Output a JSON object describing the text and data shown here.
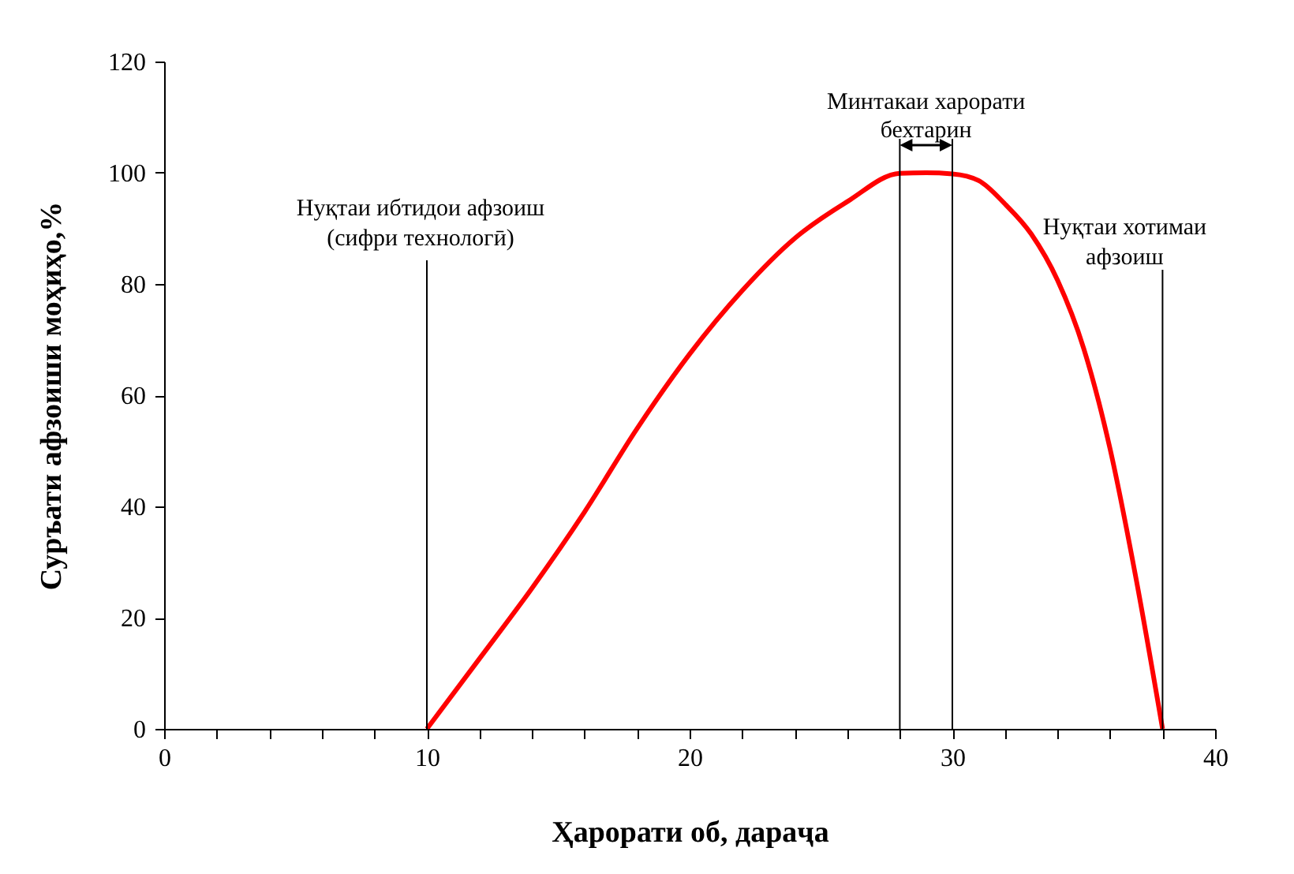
{
  "chart_data": {
    "type": "line",
    "xlabel": "Ҳарорати об, дараҷа",
    "ylabel": "Суръати афзоиши моҳиҳо,%",
    "x": [
      10,
      12,
      14,
      16,
      18,
      20,
      22,
      24,
      26,
      28,
      29,
      30,
      31,
      32,
      33,
      34,
      35,
      36,
      37,
      38
    ],
    "series": [
      {
        "color": "#ff0000",
        "values": [
          0,
          12.6,
          25.3,
          39,
          54,
          67.4,
          78.8,
          88.2,
          94.8,
          99.9,
          100,
          99.8,
          98.6,
          94.4,
          89,
          80.7,
          68.4,
          50.4,
          26.8,
          0
        ]
      }
    ],
    "xlim": [
      0,
      40
    ],
    "xticks": [
      0,
      {
        "value": 2,
        "label": null
      },
      {
        "value": 4,
        "label": null
      },
      {
        "value": 6,
        "label": null
      },
      {
        "value": 8,
        "label": null
      },
      10,
      {
        "value": 12,
        "label": null
      },
      {
        "value": 14,
        "label": null
      },
      {
        "value": 16,
        "label": null
      },
      {
        "value": 18,
        "label": null
      },
      20,
      {
        "value": 22,
        "label": null
      },
      {
        "value": 24,
        "label": null
      },
      {
        "value": 26,
        "label": null
      },
      {
        "value": 28,
        "label": null
      },
      30,
      {
        "value": 32,
        "label": null
      },
      {
        "value": 34,
        "label": null
      },
      {
        "value": 36,
        "label": null
      },
      {
        "value": 38,
        "label": null
      },
      40
    ],
    "ylim": [
      0,
      120
    ],
    "yticks": [
      0,
      20,
      40,
      60,
      80,
      100,
      120
    ],
    "ref_lines": [
      {
        "axis": "x",
        "value": 10,
        "label": "Нуқтаи ибтидои афзоиш\n(сифри технологӣ)",
        "color": "#000000"
      },
      {
        "axis": "x",
        "value": 28,
        "color": "#000000"
      },
      {
        "axis": "x",
        "value": 30,
        "color": "#000000"
      },
      {
        "axis": "x",
        "value": 38,
        "label": "Нуқтаи хотимаи\nафзоиш",
        "color": "#000000"
      }
    ],
    "annotations": [
      "Минтакаи харорати\nбехтарин"
    ],
    "grid": false,
    "marker": "none",
    "line_style": "solid"
  }
}
